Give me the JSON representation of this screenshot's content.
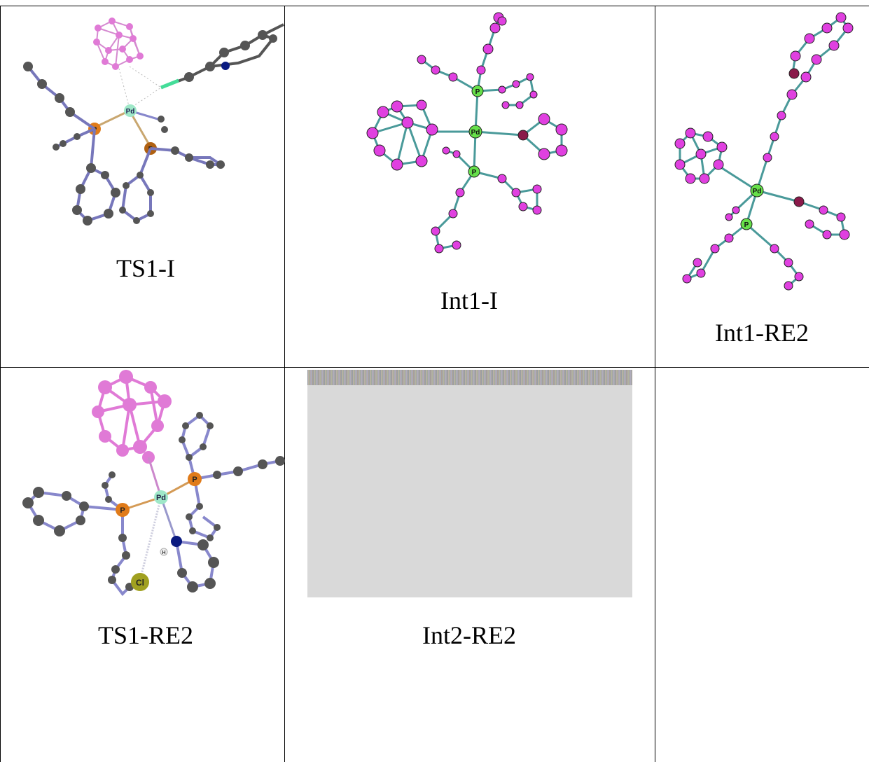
{
  "captions": {
    "ts1_i": "TS1-I",
    "int1_i": "Int1-I",
    "int1_re2": "Int1-RE2",
    "ts1_re2": "TS1-RE2",
    "int2_re2": "Int2-RE2"
  },
  "atoms": {
    "pd": "Pd",
    "p": "P",
    "b": "B",
    "c": "C",
    "n": "N",
    "cl": "Cl",
    "h": "H"
  },
  "colors": {
    "carbon_gray": "#5a5a5a",
    "bond_blue": "#9999dd",
    "boron_pink": "#e07ad6",
    "phosphorus_orange": "#e07b1a",
    "palladium_mint": "#9fe8c8",
    "nitrogen_navy": "#0a1a80",
    "chlorine_olive": "#a0a020",
    "magenta_atom": "#e040e0",
    "teal_bond": "#4a9a9a",
    "green_atom": "#66e04a",
    "placeholder_gray": "#d9d9d9"
  }
}
